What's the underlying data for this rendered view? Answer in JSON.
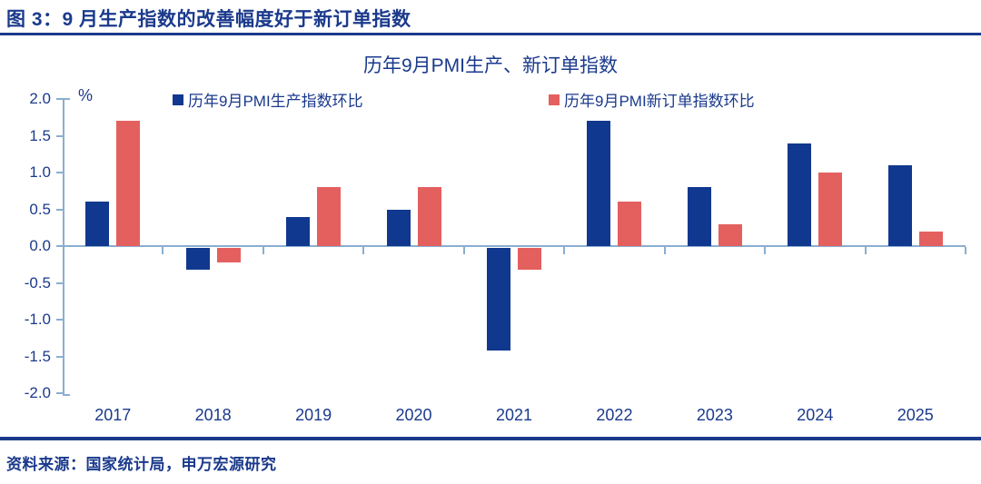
{
  "page": {
    "title": "图 3：9 月生产指数的改善幅度好于新订单指数",
    "source": "资料来源：国家统计局，申万宏源研究"
  },
  "chart_data": {
    "type": "bar",
    "title": "历年9月PMI生产、新订单指数",
    "unit_label": "%",
    "categories": [
      "2017",
      "2018",
      "2019",
      "2020",
      "2021",
      "2022",
      "2023",
      "2024",
      "2025"
    ],
    "series": [
      {
        "name": "历年9月PMI生产指数环比",
        "color": "#10388e",
        "values": [
          0.6,
          -0.3,
          0.4,
          0.5,
          -1.4,
          1.7,
          0.8,
          1.4,
          1.1
        ]
      },
      {
        "name": "历年9月PMI新订单指数环比",
        "color": "#e4605f",
        "values": [
          1.7,
          -0.2,
          0.8,
          0.8,
          -0.3,
          0.6,
          0.3,
          1.0,
          0.2
        ]
      }
    ],
    "ylim": [
      -2.0,
      2.0
    ],
    "ytick_labels": [
      "2.0",
      "1.5",
      "1.0",
      "0.5",
      "0.0",
      "-0.5",
      "-1.0",
      "-1.5",
      "-2.0"
    ],
    "grid": false,
    "legend_position": "top"
  },
  "colors": {
    "navy_text": "#1b3a8c",
    "rule": "#1b3a8c",
    "axis": "#8aaed0",
    "bar_production": "#10388e",
    "bar_new_orders": "#e4605f"
  }
}
